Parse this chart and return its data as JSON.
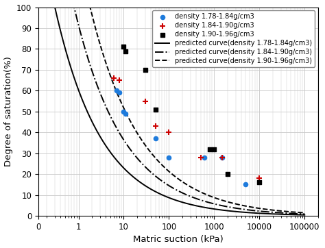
{
  "xlabel": "Matric suction (kPa)",
  "ylabel": "Degree of saturation(%)",
  "ylim": [
    0,
    100
  ],
  "yticks": [
    0,
    10,
    20,
    30,
    40,
    50,
    60,
    70,
    80,
    90,
    100
  ],
  "scatter_blue": {
    "x": [
      7,
      8,
      10,
      11,
      50,
      100,
      600,
      1500,
      5000
    ],
    "y": [
      60,
      59,
      50,
      49,
      37,
      28,
      28,
      28,
      15
    ],
    "color": "#1e7bdc",
    "marker": "o",
    "label": "density 1.78-1.84g/cm3"
  },
  "scatter_red": {
    "x": [
      6,
      8,
      30,
      50,
      100,
      500,
      1500,
      10000
    ],
    "y": [
      66,
      65,
      55,
      43,
      40,
      28,
      28,
      18
    ],
    "color": "#cc0000",
    "marker": "+",
    "label": "density 1.84-1.90g/cm3"
  },
  "scatter_black": {
    "x": [
      10,
      11,
      30,
      50,
      800,
      1000,
      2000,
      10000
    ],
    "y": [
      81,
      79,
      70,
      51,
      32,
      32,
      20,
      16
    ],
    "color": "#000000",
    "marker": "s",
    "label": "density 1.90-1.96g/cm3"
  },
  "curve_solid": {
    "psi_e": 0.3,
    "lam": 0.42,
    "color": "#000000",
    "linestyle": "-",
    "linewidth": 1.4,
    "label": "predicted curve(density 1.78-1.84g/cm3)"
  },
  "curve_dashdot": {
    "psi_e": 0.8,
    "lam": 0.4,
    "color": "#000000",
    "linestyle": "-.",
    "linewidth": 1.4,
    "label": "predicted curve(density 1.84-1.90g/cm3)"
  },
  "curve_dashed": {
    "psi_e": 1.8,
    "lam": 0.385,
    "color": "#000000",
    "linestyle": "--",
    "linewidth": 1.4,
    "label": "predicted curve(density 1.90-1.96g/cm3)"
  },
  "legend_fontsize": 7.0,
  "axis_fontsize": 9.5,
  "tick_fontsize": 8.5,
  "background_color": "#ffffff",
  "grid_color": "#c8c8c8"
}
